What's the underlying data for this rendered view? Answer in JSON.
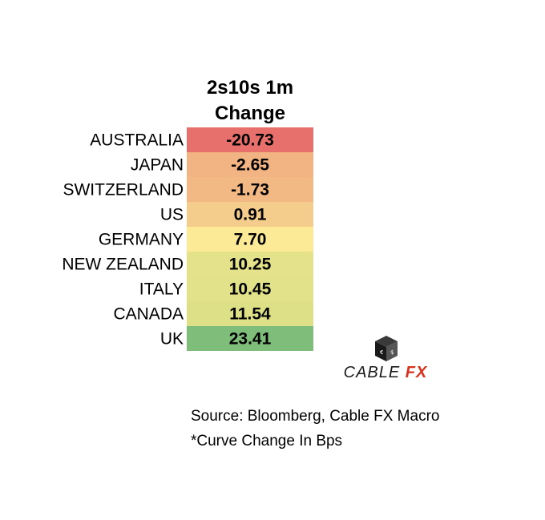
{
  "chart_data": {
    "type": "heatmap",
    "title": "2s10s 1m Change",
    "categories": [
      "AUSTRALIA",
      "JAPAN",
      "SWITZERLAND",
      "US",
      "GERMANY",
      "NEW ZEALAND",
      "ITALY",
      "CANADA",
      "UK"
    ],
    "values": [
      -20.73,
      -2.65,
      -1.73,
      0.91,
      7.7,
      10.25,
      10.45,
      11.54,
      23.41
    ],
    "value_labels": [
      "-20.73",
      "-2.65",
      "-1.73",
      "0.91",
      "7.70",
      "10.25",
      "10.45",
      "11.54",
      "23.41"
    ],
    "colors": [
      "#e8706c",
      "#f2b483",
      "#f2b985",
      "#f4cd8c",
      "#fcea96",
      "#e4e38b",
      "#e2e28a",
      "#dde087",
      "#7ebd7a"
    ]
  },
  "logo": {
    "text_main": "CABLE",
    "text_accent": "FX",
    "icon": "dice-cube-icon",
    "accent_color": "#d6331f"
  },
  "notes": {
    "source": "Source: Bloomberg, Cable FX Macro",
    "footnote": "*Curve Change In Bps"
  }
}
